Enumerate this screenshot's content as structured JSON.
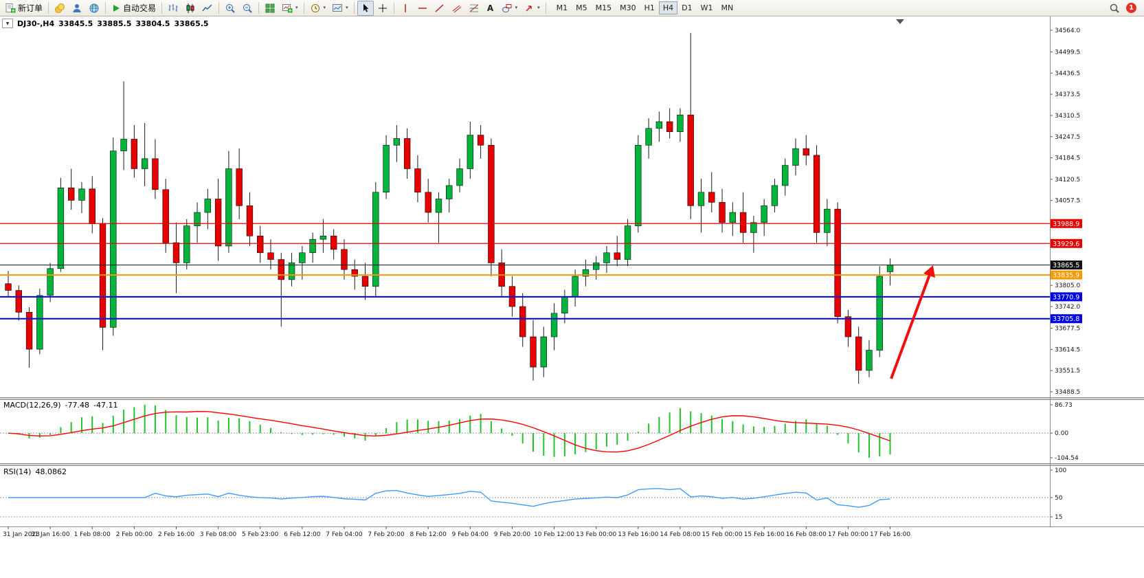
{
  "icons": {
    "caret_down": "▾",
    "triangle_down": "▼"
  },
  "toolbar": {
    "new_order": "新订单",
    "auto_trading": "自动交易",
    "text_tool": "A",
    "timeframes": [
      "M1",
      "M5",
      "M15",
      "M30",
      "H1",
      "H4",
      "D1",
      "W1",
      "MN"
    ],
    "active_timeframe": "H4",
    "notification_count": "1"
  },
  "chart": {
    "title": "DJ30-,H4",
    "open": "33845.5",
    "high": "33885.5",
    "low": "33804.5",
    "close": "33865.5",
    "price_ticks": [
      "34564.0",
      "34499.5",
      "34436.5",
      "34373.5",
      "34310.5",
      "34247.5",
      "34184.5",
      "34120.5",
      "34057.5",
      "33805.0",
      "33742.0",
      "33677.5",
      "33614.5",
      "33551.5",
      "33488.5"
    ],
    "levels": [
      {
        "price": 33988.9,
        "label": "33988.9",
        "color": "#E60000",
        "width": 1.2
      },
      {
        "price": 33929.6,
        "label": "33929.6",
        "color": "#E60000",
        "width": 1.2
      },
      {
        "price": 33865.5,
        "label": "33865.5",
        "color": "#111111",
        "width": 1
      },
      {
        "price": 33835.9,
        "label": "33835.9",
        "color": "#F59A00",
        "width": 2
      },
      {
        "price": 33770.9,
        "label": "33770.9",
        "color": "#0000E6",
        "width": 2
      },
      {
        "price": 33705.8,
        "label": "33705.8",
        "color": "#0000E6",
        "width": 2
      }
    ],
    "colors": {
      "up": "#00B43C",
      "down": "#E60000",
      "wick": "#1A1A1A",
      "background": "#FFFFFF"
    }
  },
  "macd": {
    "name": "MACD(12,26,9)",
    "value_main": "-77.48",
    "value_signal": "-47.11",
    "axis": [
      "86.73",
      "0.00",
      "-104.54"
    ],
    "colors": {
      "histogram": "#22C32A",
      "signal": "#FF0000"
    }
  },
  "rsi": {
    "name": "RSI(14)",
    "value": "48.0862",
    "axis": [
      "100",
      "50",
      "15"
    ],
    "color": "#3E9BFF"
  },
  "annotation": {
    "type": "up-arrow",
    "color": "#F01010"
  },
  "chart_data": {
    "type": "candlestick",
    "symbol": "DJ30-",
    "timeframe": "H4",
    "title": "DJ30-,H4 33845.5 33885.5 33804.5 33865.5",
    "y_range": [
      33488.5,
      34564.0
    ],
    "x_label_step": 4,
    "x_labels": [
      "31 Jan 2023",
      "31 Jan 16:00",
      "1 Feb 08:00",
      "2 Feb 00:00",
      "2 Feb 16:00",
      "3 Feb 08:00",
      "5 Feb 23:00",
      "6 Feb 12:00",
      "7 Feb 04:00",
      "7 Feb 20:00",
      "8 Feb 12:00",
      "9 Feb 04:00",
      "9 Feb 20:00",
      "10 Feb 12:00",
      "13 Feb 00:00",
      "13 Feb 16:00",
      "14 Feb 08:00",
      "15 Feb 00:00",
      "15 Feb 16:00",
      "16 Feb 08:00",
      "17 Feb 00:00",
      "17 Feb 16:00"
    ],
    "indicators": [
      "MACD(12,26,9)",
      "RSI(14)"
    ],
    "ohlc": [
      [
        33810,
        33848,
        33770,
        33790
      ],
      [
        33790,
        33805,
        33700,
        33725
      ],
      [
        33725,
        33740,
        33560,
        33615
      ],
      [
        33615,
        33795,
        33600,
        33775
      ],
      [
        33775,
        33872,
        33755,
        33855
      ],
      [
        33855,
        34125,
        33845,
        34095
      ],
      [
        34095,
        34152,
        34030,
        34058
      ],
      [
        34058,
        34112,
        34020,
        34092
      ],
      [
        34092,
        34130,
        33960,
        33988
      ],
      [
        33988,
        34005,
        33612,
        33680
      ],
      [
        33680,
        34245,
        33655,
        34205
      ],
      [
        34205,
        34412,
        34148,
        34240
      ],
      [
        34240,
        34282,
        34125,
        34152
      ],
      [
        34152,
        34288,
        34100,
        34182
      ],
      [
        34182,
        34240,
        34062,
        34090
      ],
      [
        34090,
        34122,
        33902,
        33932
      ],
      [
        33932,
        33992,
        33782,
        33872
      ],
      [
        33872,
        34002,
        33852,
        33982
      ],
      [
        33982,
        34052,
        33932,
        34022
      ],
      [
        34022,
        34092,
        33972,
        34062
      ],
      [
        34062,
        34122,
        33878,
        33922
      ],
      [
        33922,
        34205,
        33902,
        34152
      ],
      [
        34152,
        34212,
        34002,
        34042
      ],
      [
        34042,
        34082,
        33922,
        33952
      ],
      [
        33952,
        33982,
        33872,
        33902
      ],
      [
        33902,
        33942,
        33852,
        33882
      ],
      [
        33882,
        33902,
        33682,
        33822
      ],
      [
        33822,
        33902,
        33802,
        33872
      ],
      [
        33872,
        33922,
        33822,
        33902
      ],
      [
        33902,
        33962,
        33872,
        33942
      ],
      [
        33942,
        34002,
        33902,
        33952
      ],
      [
        33952,
        33972,
        33882,
        33912
      ],
      [
        33912,
        33942,
        33822,
        33852
      ],
      [
        33852,
        33882,
        33792,
        33832
      ],
      [
        33832,
        33872,
        33762,
        33802
      ],
      [
        33802,
        34112,
        33772,
        34082
      ],
      [
        34082,
        34252,
        34062,
        34222
      ],
      [
        34222,
        34282,
        34172,
        34242
      ],
      [
        34242,
        34272,
        34122,
        34152
      ],
      [
        34152,
        34192,
        34052,
        34082
      ],
      [
        34082,
        34122,
        33992,
        34022
      ],
      [
        34022,
        34082,
        33932,
        34062
      ],
      [
        34062,
        34122,
        34022,
        34102
      ],
      [
        34102,
        34182,
        34082,
        34152
      ],
      [
        34152,
        34292,
        34122,
        34252
      ],
      [
        34252,
        34282,
        34182,
        34222
      ],
      [
        34222,
        34242,
        33832,
        33872
      ],
      [
        33872,
        33912,
        33772,
        33802
      ],
      [
        33802,
        33832,
        33712,
        33742
      ],
      [
        33742,
        33782,
        33622,
        33652
      ],
      [
        33652,
        33702,
        33522,
        33562
      ],
      [
        33562,
        33682,
        33532,
        33652
      ],
      [
        33652,
        33752,
        33612,
        33722
      ],
      [
        33722,
        33792,
        33692,
        33772
      ],
      [
        33772,
        33852,
        33742,
        33832
      ],
      [
        33832,
        33882,
        33802,
        33852
      ],
      [
        33852,
        33892,
        33822,
        33872
      ],
      [
        33872,
        33922,
        33842,
        33902
      ],
      [
        33902,
        33952,
        33862,
        33882
      ],
      [
        33882,
        34002,
        33862,
        33982
      ],
      [
        33982,
        34252,
        33962,
        34222
      ],
      [
        34222,
        34302,
        34182,
        34272
      ],
      [
        34272,
        34322,
        34232,
        34292
      ],
      [
        34292,
        34332,
        34242,
        34262
      ],
      [
        34262,
        34332,
        34232,
        34312
      ],
      [
        34312,
        34556,
        34002,
        34042
      ],
      [
        34042,
        34122,
        33962,
        34082
      ],
      [
        34082,
        34142,
        34022,
        34052
      ],
      [
        34052,
        34092,
        33962,
        33992
      ],
      [
        33992,
        34052,
        33952,
        34022
      ],
      [
        34022,
        34082,
        33932,
        33962
      ],
      [
        33962,
        34012,
        33902,
        33992
      ],
      [
        33992,
        34062,
        33952,
        34042
      ],
      [
        34042,
        34122,
        34022,
        34102
      ],
      [
        34102,
        34182,
        34072,
        34162
      ],
      [
        34162,
        34242,
        34132,
        34212
      ],
      [
        34212,
        34252,
        34162,
        34192
      ],
      [
        34192,
        34222,
        33932,
        33962
      ],
      [
        33962,
        34062,
        33922,
        34032
      ],
      [
        34032,
        34052,
        33692,
        33712
      ],
      [
        33712,
        33732,
        33622,
        33652
      ],
      [
        33652,
        33682,
        33512,
        33552
      ],
      [
        33552,
        33642,
        33532,
        33612
      ],
      [
        33612,
        33862,
        33592,
        33832
      ],
      [
        33845.5,
        33885.5,
        33804.5,
        33865.5
      ]
    ]
  }
}
